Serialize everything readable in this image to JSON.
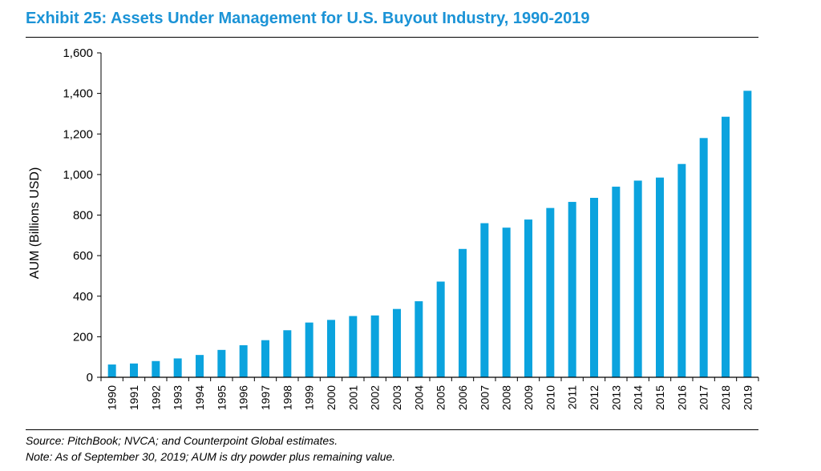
{
  "title": "Exhibit 25: Assets Under Management for U.S. Buyout Industry, 1990-2019",
  "source": "Source: PitchBook; NVCA; and Counterpoint Global estimates.",
  "note": "Note: As of September 30, 2019; AUM is dry powder plus remaining value.",
  "colors": {
    "bar": "#0ba3de",
    "title": "#1b93d6"
  },
  "chart_data": {
    "type": "bar",
    "ylabel": "AUM (Billions USD)",
    "ylim": [
      0,
      1600
    ],
    "yticks": [
      0,
      200,
      400,
      600,
      800,
      1000,
      1200,
      1400,
      1600
    ],
    "ytick_labels": [
      "0",
      "200",
      "400",
      "600",
      "800",
      "1,000",
      "1,200",
      "1,400",
      "1,600"
    ],
    "grid": false,
    "categories": [
      "1990",
      "1991",
      "1992",
      "1993",
      "1994",
      "1995",
      "1996",
      "1997",
      "1998",
      "1999",
      "2000",
      "2001",
      "2002",
      "2003",
      "2004",
      "2005",
      "2006",
      "2007",
      "2008",
      "2009",
      "2010",
      "2011",
      "2012",
      "2013",
      "2014",
      "2015",
      "2016",
      "2017",
      "2018",
      "2019"
    ],
    "values": [
      63,
      68,
      80,
      93,
      110,
      135,
      158,
      183,
      232,
      270,
      283,
      302,
      305,
      337,
      375,
      472,
      633,
      760,
      738,
      778,
      835,
      865,
      885,
      940,
      970,
      985,
      1052,
      1180,
      1285,
      1413
    ]
  }
}
